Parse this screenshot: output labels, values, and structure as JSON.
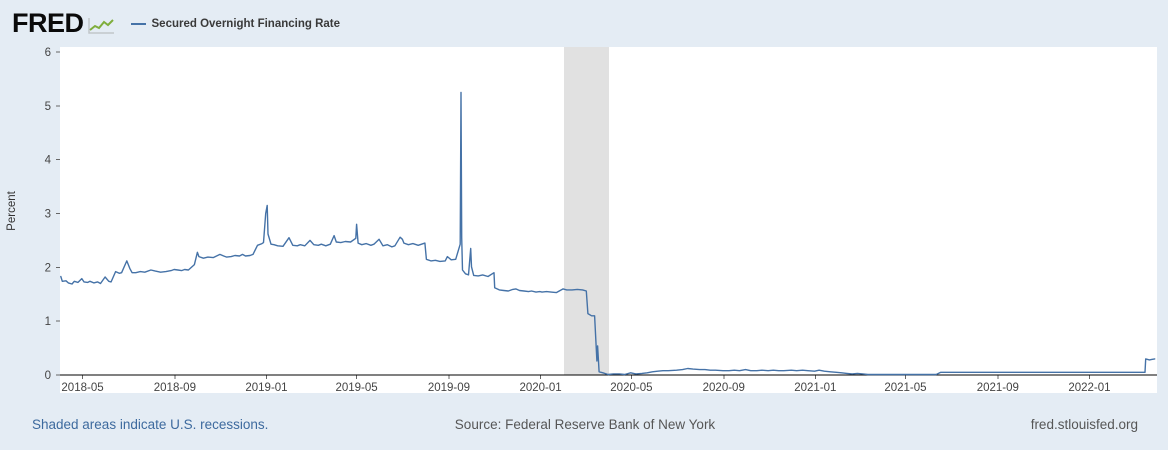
{
  "header": {
    "logo_text": "FRED",
    "legend": {
      "series_label": "Secured Overnight Financing Rate"
    }
  },
  "footer": {
    "recession_note": "Shaded areas indicate U.S. recessions.",
    "source": "Source: Federal Reserve Bank of New York",
    "site": "fred.stlouisfed.org"
  },
  "colors": {
    "background": "#e4ecf4",
    "plot_bg": "#ffffff",
    "recession": "#e1e1e1",
    "line": "#4572a7",
    "axis": "#000000",
    "tick_text": "#444444",
    "link": "#3d6a9e"
  },
  "chart_data": {
    "type": "line",
    "title": "Secured Overnight Financing Rate",
    "xlabel": "",
    "ylabel": "Percent",
    "y_range": [
      0,
      6
    ],
    "y_ticks": [
      0,
      1,
      2,
      3,
      4,
      5,
      6
    ],
    "x_range": [
      "2018-04-01",
      "2022-04-01"
    ],
    "x_ticks": [
      "2018-05",
      "2018-09",
      "2019-01",
      "2019-05",
      "2019-09",
      "2020-01",
      "2020-05",
      "2020-09",
      "2021-01",
      "2021-05",
      "2021-09",
      "2022-01"
    ],
    "grid": false,
    "legend_position": "top-left",
    "recessions": [
      {
        "start": "2020-02-01",
        "end": "2020-04-01"
      }
    ],
    "series": [
      {
        "name": "Secured Overnight Financing Rate",
        "color": "#4572a7",
        "points": [
          [
            "2018-04-02",
            1.83
          ],
          [
            "2018-04-04",
            1.74
          ],
          [
            "2018-04-09",
            1.75
          ],
          [
            "2018-04-12",
            1.71
          ],
          [
            "2018-04-17",
            1.69
          ],
          [
            "2018-04-20",
            1.74
          ],
          [
            "2018-04-25",
            1.72
          ],
          [
            "2018-04-30",
            1.79
          ],
          [
            "2018-05-03",
            1.73
          ],
          [
            "2018-05-08",
            1.72
          ],
          [
            "2018-05-11",
            1.74
          ],
          [
            "2018-05-16",
            1.71
          ],
          [
            "2018-05-21",
            1.73
          ],
          [
            "2018-05-25",
            1.7
          ],
          [
            "2018-05-31",
            1.82
          ],
          [
            "2018-06-05",
            1.74
          ],
          [
            "2018-06-08",
            1.73
          ],
          [
            "2018-06-14",
            1.92
          ],
          [
            "2018-06-19",
            1.89
          ],
          [
            "2018-06-22",
            1.9
          ],
          [
            "2018-06-29",
            2.12
          ],
          [
            "2018-07-03",
            1.98
          ],
          [
            "2018-07-06",
            1.9
          ],
          [
            "2018-07-11",
            1.9
          ],
          [
            "2018-07-17",
            1.92
          ],
          [
            "2018-07-23",
            1.91
          ],
          [
            "2018-07-31",
            1.95
          ],
          [
            "2018-08-06",
            1.93
          ],
          [
            "2018-08-13",
            1.91
          ],
          [
            "2018-08-20",
            1.92
          ],
          [
            "2018-08-27",
            1.94
          ],
          [
            "2018-08-31",
            1.96
          ],
          [
            "2018-09-05",
            1.95
          ],
          [
            "2018-09-10",
            1.94
          ],
          [
            "2018-09-14",
            1.96
          ],
          [
            "2018-09-19",
            1.95
          ],
          [
            "2018-09-27",
            2.05
          ],
          [
            "2018-10-01",
            2.28
          ],
          [
            "2018-10-03",
            2.2
          ],
          [
            "2018-10-09",
            2.17
          ],
          [
            "2018-10-15",
            2.19
          ],
          [
            "2018-10-22",
            2.18
          ],
          [
            "2018-10-31",
            2.24
          ],
          [
            "2018-11-05",
            2.21
          ],
          [
            "2018-11-09",
            2.19
          ],
          [
            "2018-11-15",
            2.2
          ],
          [
            "2018-11-20",
            2.22
          ],
          [
            "2018-11-26",
            2.21
          ],
          [
            "2018-11-30",
            2.24
          ],
          [
            "2018-12-04",
            2.21
          ],
          [
            "2018-12-10",
            2.22
          ],
          [
            "2018-12-14",
            2.24
          ],
          [
            "2018-12-20",
            2.41
          ],
          [
            "2018-12-26",
            2.44
          ],
          [
            "2018-12-28",
            2.46
          ],
          [
            "2018-12-31",
            3.0
          ],
          [
            "2019-01-02",
            3.15
          ],
          [
            "2019-01-03",
            2.62
          ],
          [
            "2019-01-07",
            2.43
          ],
          [
            "2019-01-11",
            2.42
          ],
          [
            "2019-01-16",
            2.4
          ],
          [
            "2019-01-23",
            2.39
          ],
          [
            "2019-01-31",
            2.55
          ],
          [
            "2019-02-05",
            2.41
          ],
          [
            "2019-02-11",
            2.4
          ],
          [
            "2019-02-15",
            2.42
          ],
          [
            "2019-02-21",
            2.4
          ],
          [
            "2019-02-28",
            2.5
          ],
          [
            "2019-03-05",
            2.42
          ],
          [
            "2019-03-11",
            2.41
          ],
          [
            "2019-03-15",
            2.43
          ],
          [
            "2019-03-21",
            2.4
          ],
          [
            "2019-03-27",
            2.43
          ],
          [
            "2019-04-01",
            2.59
          ],
          [
            "2019-04-04",
            2.47
          ],
          [
            "2019-04-10",
            2.46
          ],
          [
            "2019-04-16",
            2.48
          ],
          [
            "2019-04-23",
            2.47
          ],
          [
            "2019-04-30",
            2.54
          ],
          [
            "2019-05-01",
            2.8
          ],
          [
            "2019-05-03",
            2.45
          ],
          [
            "2019-05-08",
            2.42
          ],
          [
            "2019-05-14",
            2.44
          ],
          [
            "2019-05-20",
            2.41
          ],
          [
            "2019-05-24",
            2.43
          ],
          [
            "2019-05-31",
            2.52
          ],
          [
            "2019-06-05",
            2.4
          ],
          [
            "2019-06-11",
            2.42
          ],
          [
            "2019-06-17",
            2.38
          ],
          [
            "2019-06-21",
            2.4
          ],
          [
            "2019-06-28",
            2.56
          ],
          [
            "2019-07-01",
            2.52
          ],
          [
            "2019-07-03",
            2.45
          ],
          [
            "2019-07-09",
            2.42
          ],
          [
            "2019-07-15",
            2.44
          ],
          [
            "2019-07-22",
            2.41
          ],
          [
            "2019-07-31",
            2.45
          ],
          [
            "2019-08-02",
            2.15
          ],
          [
            "2019-08-08",
            2.12
          ],
          [
            "2019-08-14",
            2.13
          ],
          [
            "2019-08-20",
            2.11
          ],
          [
            "2019-08-27",
            2.12
          ],
          [
            "2019-08-30",
            2.2
          ],
          [
            "2019-09-04",
            2.14
          ],
          [
            "2019-09-10",
            2.15
          ],
          [
            "2019-09-16",
            2.43
          ],
          [
            "2019-09-17",
            5.25
          ],
          [
            "2019-09-18",
            2.55
          ],
          [
            "2019-09-19",
            1.95
          ],
          [
            "2019-09-23",
            1.88
          ],
          [
            "2019-09-27",
            1.86
          ],
          [
            "2019-09-30",
            2.35
          ],
          [
            "2019-10-01",
            2.01
          ],
          [
            "2019-10-04",
            1.85
          ],
          [
            "2019-10-10",
            1.84
          ],
          [
            "2019-10-16",
            1.86
          ],
          [
            "2019-10-23",
            1.83
          ],
          [
            "2019-10-31",
            1.9
          ],
          [
            "2019-11-01",
            1.62
          ],
          [
            "2019-11-07",
            1.58
          ],
          [
            "2019-11-13",
            1.57
          ],
          [
            "2019-11-19",
            1.56
          ],
          [
            "2019-11-25",
            1.59
          ],
          [
            "2019-11-29",
            1.6
          ],
          [
            "2019-12-04",
            1.57
          ],
          [
            "2019-12-10",
            1.56
          ],
          [
            "2019-12-16",
            1.55
          ],
          [
            "2019-12-20",
            1.56
          ],
          [
            "2019-12-26",
            1.54
          ],
          [
            "2019-12-31",
            1.55
          ],
          [
            "2020-01-03",
            1.54
          ],
          [
            "2020-01-09",
            1.55
          ],
          [
            "2020-01-15",
            1.54
          ],
          [
            "2020-01-22",
            1.53
          ],
          [
            "2020-01-31",
            1.6
          ],
          [
            "2020-02-05",
            1.58
          ],
          [
            "2020-02-12",
            1.58
          ],
          [
            "2020-02-19",
            1.59
          ],
          [
            "2020-02-26",
            1.58
          ],
          [
            "2020-03-02",
            1.56
          ],
          [
            "2020-03-04",
            1.14
          ],
          [
            "2020-03-09",
            1.1
          ],
          [
            "2020-03-13",
            1.1
          ],
          [
            "2020-03-16",
            0.26
          ],
          [
            "2020-03-17",
            0.54
          ],
          [
            "2020-03-19",
            0.06
          ],
          [
            "2020-03-24",
            0.04
          ],
          [
            "2020-03-31",
            0.01
          ],
          [
            "2020-04-07",
            0.02
          ],
          [
            "2020-04-15",
            0.02
          ],
          [
            "2020-04-22",
            0.01
          ],
          [
            "2020-04-30",
            0.04
          ],
          [
            "2020-05-07",
            0.02
          ],
          [
            "2020-05-15",
            0.03
          ],
          [
            "2020-05-22",
            0.04
          ],
          [
            "2020-05-29",
            0.06
          ],
          [
            "2020-06-05",
            0.07
          ],
          [
            "2020-06-12",
            0.08
          ],
          [
            "2020-06-19",
            0.08
          ],
          [
            "2020-06-30",
            0.09
          ],
          [
            "2020-07-08",
            0.1
          ],
          [
            "2020-07-15",
            0.12
          ],
          [
            "2020-07-22",
            0.11
          ],
          [
            "2020-07-31",
            0.1
          ],
          [
            "2020-08-07",
            0.1
          ],
          [
            "2020-08-14",
            0.09
          ],
          [
            "2020-08-21",
            0.09
          ],
          [
            "2020-08-31",
            0.08
          ],
          [
            "2020-09-08",
            0.08
          ],
          [
            "2020-09-15",
            0.09
          ],
          [
            "2020-09-22",
            0.08
          ],
          [
            "2020-09-30",
            0.1
          ],
          [
            "2020-10-07",
            0.08
          ],
          [
            "2020-10-15",
            0.08
          ],
          [
            "2020-10-22",
            0.09
          ],
          [
            "2020-10-30",
            0.08
          ],
          [
            "2020-11-06",
            0.09
          ],
          [
            "2020-11-13",
            0.08
          ],
          [
            "2020-11-20",
            0.08
          ],
          [
            "2020-11-30",
            0.09
          ],
          [
            "2020-12-07",
            0.08
          ],
          [
            "2020-12-15",
            0.09
          ],
          [
            "2020-12-22",
            0.08
          ],
          [
            "2020-12-31",
            0.07
          ],
          [
            "2021-01-06",
            0.09
          ],
          [
            "2021-01-13",
            0.07
          ],
          [
            "2021-01-21",
            0.06
          ],
          [
            "2021-01-29",
            0.05
          ],
          [
            "2021-02-05",
            0.04
          ],
          [
            "2021-02-12",
            0.03
          ],
          [
            "2021-02-19",
            0.02
          ],
          [
            "2021-02-26",
            0.03
          ],
          [
            "2021-03-05",
            0.02
          ],
          [
            "2021-03-12",
            0.01
          ],
          [
            "2021-03-19",
            0.01
          ],
          [
            "2021-03-31",
            0.01
          ],
          [
            "2021-04-08",
            0.01
          ],
          [
            "2021-04-15",
            0.01
          ],
          [
            "2021-04-23",
            0.01
          ],
          [
            "2021-04-30",
            0.01
          ],
          [
            "2021-05-07",
            0.01
          ],
          [
            "2021-05-14",
            0.01
          ],
          [
            "2021-05-21",
            0.01
          ],
          [
            "2021-05-28",
            0.01
          ],
          [
            "2021-06-04",
            0.01
          ],
          [
            "2021-06-11",
            0.01
          ],
          [
            "2021-06-17",
            0.05
          ],
          [
            "2021-06-25",
            0.05
          ],
          [
            "2021-06-30",
            0.05
          ],
          [
            "2021-07-09",
            0.05
          ],
          [
            "2021-07-16",
            0.05
          ],
          [
            "2021-07-23",
            0.05
          ],
          [
            "2021-07-30",
            0.05
          ],
          [
            "2021-08-06",
            0.05
          ],
          [
            "2021-08-13",
            0.05
          ],
          [
            "2021-08-20",
            0.05
          ],
          [
            "2021-08-31",
            0.05
          ],
          [
            "2021-09-08",
            0.05
          ],
          [
            "2021-09-15",
            0.05
          ],
          [
            "2021-09-22",
            0.05
          ],
          [
            "2021-09-30",
            0.05
          ],
          [
            "2021-10-07",
            0.05
          ],
          [
            "2021-10-15",
            0.05
          ],
          [
            "2021-10-22",
            0.05
          ],
          [
            "2021-10-29",
            0.05
          ],
          [
            "2021-11-05",
            0.05
          ],
          [
            "2021-11-12",
            0.05
          ],
          [
            "2021-11-19",
            0.05
          ],
          [
            "2021-11-30",
            0.05
          ],
          [
            "2021-12-07",
            0.05
          ],
          [
            "2021-12-15",
            0.05
          ],
          [
            "2021-12-22",
            0.05
          ],
          [
            "2021-12-31",
            0.05
          ],
          [
            "2022-01-07",
            0.05
          ],
          [
            "2022-01-14",
            0.05
          ],
          [
            "2022-01-21",
            0.05
          ],
          [
            "2022-01-31",
            0.05
          ],
          [
            "2022-02-07",
            0.05
          ],
          [
            "2022-02-14",
            0.05
          ],
          [
            "2022-02-22",
            0.05
          ],
          [
            "2022-02-28",
            0.05
          ],
          [
            "2022-03-07",
            0.05
          ],
          [
            "2022-03-14",
            0.05
          ],
          [
            "2022-03-16",
            0.05
          ],
          [
            "2022-03-17",
            0.3
          ],
          [
            "2022-03-22",
            0.28
          ],
          [
            "2022-03-25",
            0.29
          ],
          [
            "2022-03-29",
            0.3
          ]
        ]
      }
    ]
  }
}
